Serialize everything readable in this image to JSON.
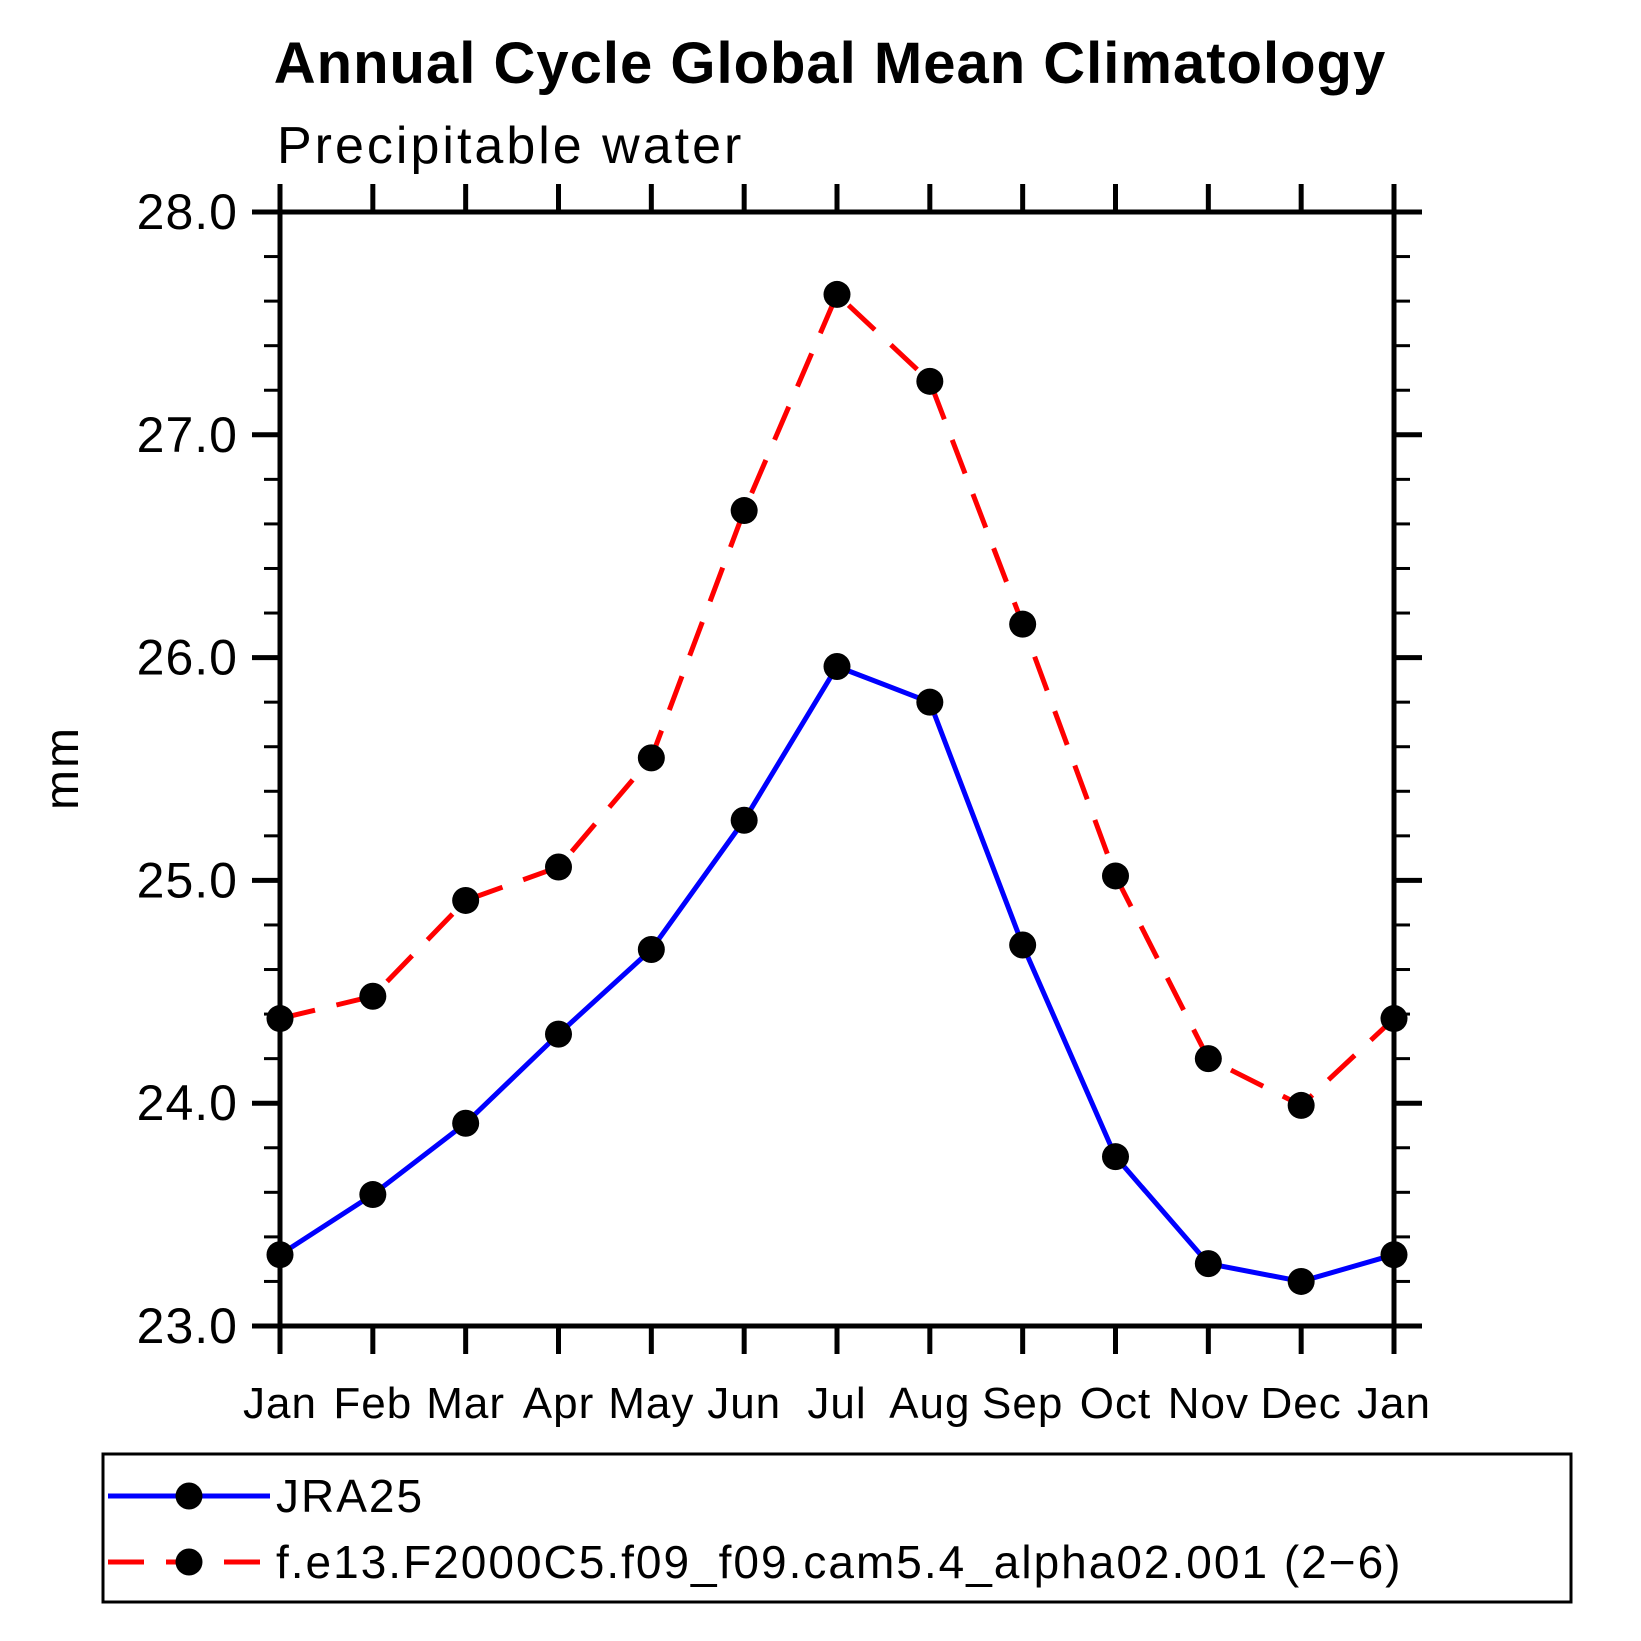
{
  "title": "Annual Cycle Global Mean Climatology",
  "subtitle": "Precipitable water",
  "y_axis_label": "mm",
  "colors": {
    "axis": "#000000",
    "marker": "#000000",
    "series1": "#0000ff",
    "series2": "#ff0000"
  },
  "chart_data": {
    "type": "line",
    "categories": [
      "Jan",
      "Feb",
      "Mar",
      "Apr",
      "May",
      "Jun",
      "Jul",
      "Aug",
      "Sep",
      "Oct",
      "Nov",
      "Dec",
      "Jan"
    ],
    "series": [
      {
        "name": "JRA25",
        "color": "#0000ff",
        "line_style": "solid",
        "marker": "circle",
        "marker_color": "#000000",
        "values": [
          23.32,
          23.59,
          23.91,
          24.31,
          24.69,
          25.27,
          25.96,
          25.8,
          24.71,
          23.76,
          23.28,
          23.2,
          23.32
        ]
      },
      {
        "name": "f.e13.F2000C5.f09_f09.cam5.4_alpha02.001 (2−6)",
        "color": "#ff0000",
        "line_style": "dashed",
        "marker": "circle",
        "marker_color": "#000000",
        "values": [
          24.38,
          24.48,
          24.91,
          25.06,
          25.55,
          26.66,
          27.63,
          27.24,
          26.15,
          25.02,
          24.2,
          23.99,
          24.38
        ]
      }
    ],
    "ylim": [
      23.0,
      28.0
    ],
    "y_major_step": 1.0,
    "y_minor_step": 0.2,
    "y_tick_labels": [
      "23.0",
      "24.0",
      "25.0",
      "26.0",
      "27.0",
      "28.0"
    ],
    "xlabel": "",
    "ylabel": "mm",
    "grid": false,
    "legend_position": "bottom"
  }
}
